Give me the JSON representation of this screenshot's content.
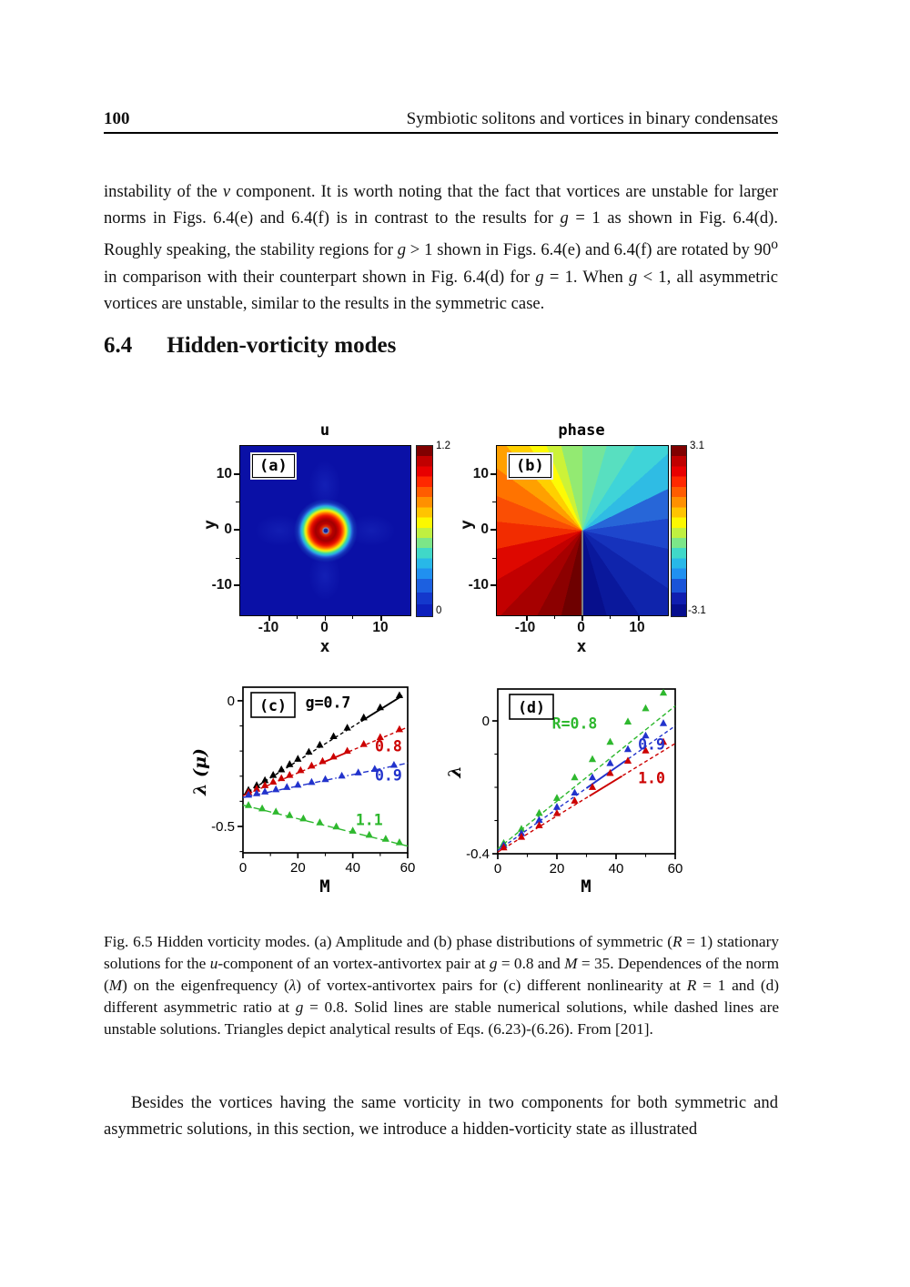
{
  "page": {
    "number": "100",
    "running_title": "Symbiotic solitons and vortices in binary condensates"
  },
  "section": {
    "number": "6.4",
    "title": "Hidden-vorticity modes"
  },
  "paragraphs": {
    "p1": "instability of the *v* component. It is worth noting that the fact that vortices are unstable for larger norms in Figs. 6.4(e) and 6.4(f) is in contrast to the results for *g* = 1 as shown in Fig. 6.4(d). Roughly speaking, the stability regions for *g* > 1 shown in Figs. 6.4(e) and 6.4(f) are rotated by 90^o in comparison with their counterpart shown in Fig. 6.4(d) for *g* = 1. When *g* < 1, all asymmetric vortices are unstable, similar to the results in the symmetric case.",
    "p2": "Besides the vortices having the same vorticity in two components for both symmetric and asymmetric solutions, in this section, we introduce a hidden-vorticity state as illustrated"
  },
  "figure_caption": "Fig. 6.5 Hidden vorticity modes. (a) Amplitude and (b) phase distributions of symmetric (*R* = 1) stationary solutions for the *u*-component of an vortex-antivortex pair at *g* = 0.8 and *M* = 35. Dependences of the norm (*M*) on the eigenfrequency (*λ*) of vortex-antivortex pairs for (c) different nonlinearity at *R* = 1 and (d) different asymmetric ratio at *g* = 0.8. Solid lines are stable numerical solutions, while dashed lines are unstable solutions. Triangles depict analytical results of Eqs. (6.23)-(6.26). From [201].",
  "chart_data": [
    {
      "id": "a",
      "type": "heatmap",
      "title": "u",
      "panel_label": "(a)",
      "xlabel": "x",
      "ylabel": "y",
      "xlim": [
        -15,
        15
      ],
      "ylim": [
        -15,
        15
      ],
      "xtick_labels": [
        "-10",
        "0",
        "10"
      ],
      "ytick_labels": [
        "10",
        "0",
        "-10"
      ],
      "colorbar": {
        "top_label": "1.2",
        "bottom_label": "0",
        "colormap": "jet"
      },
      "description": "Amplitude of the u-component: bright red vortex ring centered at origin with a small dark-blue core, on a dark-blue background with a faint cross-shaped halo."
    },
    {
      "id": "b",
      "type": "heatmap",
      "title": "phase",
      "panel_label": "(b)",
      "xlabel": "x",
      "ylabel": "y",
      "xlim": [
        -15,
        15
      ],
      "ylim": [
        -15,
        15
      ],
      "xtick_labels": [
        "-10",
        "0",
        "10"
      ],
      "ytick_labels": [
        "10",
        "0",
        "-10"
      ],
      "colorbar": {
        "top_label": "3.1",
        "bottom_label": "-3.1",
        "colormap": "jet"
      },
      "description": "Azimuthal phase distribution winding from -3.1 to 3.1 around the origin with a branch cut along the negative y-axis."
    },
    {
      "id": "c",
      "type": "line",
      "panel_label": "(c)",
      "xlabel": "M",
      "ylabel": "λ (μ)",
      "xlim": [
        0,
        60
      ],
      "ylim": [
        -0.605,
        0.054
      ],
      "xticks": [
        {
          "v": 0,
          "label": "0"
        },
        {
          "v": 20,
          "label": "20"
        },
        {
          "v": 40,
          "label": "40"
        },
        {
          "v": 60,
          "label": "60"
        }
      ],
      "xminor": [
        10,
        30,
        50
      ],
      "yticks": [
        {
          "v": 0,
          "label": "0"
        },
        {
          "v": -0.5,
          "label": "-0.5"
        }
      ],
      "yminor": [
        -0.1,
        -0.2,
        -0.3,
        -0.4,
        -0.6
      ],
      "series": [
        {
          "name": "g=0.7",
          "color": "#000000",
          "dash": [
            4,
            3
          ],
          "line": [
            [
              0,
              -0.375
            ],
            [
              58,
              0.02
            ]
          ],
          "solid": [
            43,
            58
          ],
          "tri": [
            [
              2,
              -0.355
            ],
            [
              5,
              -0.336
            ],
            [
              8,
              -0.316
            ],
            [
              11,
              -0.295
            ],
            [
              14,
              -0.273
            ],
            [
              17,
              -0.252
            ],
            [
              20,
              -0.231
            ],
            [
              24,
              -0.203
            ],
            [
              28,
              -0.175
            ],
            [
              33,
              -0.141
            ],
            [
              38,
              -0.107
            ],
            [
              44,
              -0.066
            ],
            [
              50,
              -0.026
            ],
            [
              57,
              0.022
            ]
          ]
        },
        {
          "name": "g=0.8",
          "color": "#cc0000",
          "dash": [
            4,
            3
          ],
          "line": [
            [
              0,
              -0.378
            ],
            [
              60,
              -0.105
            ]
          ],
          "solid": [
            28,
            39
          ],
          "tri": [
            [
              2,
              -0.363
            ],
            [
              5,
              -0.35
            ],
            [
              8,
              -0.336
            ],
            [
              11,
              -0.322
            ],
            [
              14,
              -0.308
            ],
            [
              17,
              -0.295
            ],
            [
              21,
              -0.276
            ],
            [
              25,
              -0.258
            ],
            [
              29,
              -0.24
            ],
            [
              33,
              -0.222
            ],
            [
              38,
              -0.199
            ],
            [
              44,
              -0.172
            ],
            [
              50,
              -0.145
            ],
            [
              57,
              -0.113
            ]
          ]
        },
        {
          "name": "g=0.9",
          "color": "#2233cc",
          "dash": [
            6,
            3,
            1.5,
            3
          ],
          "line": [
            [
              0,
              -0.385
            ],
            [
              60,
              -0.248
            ]
          ],
          "solid": null,
          "tri": [
            [
              2,
              -0.374
            ],
            [
              5,
              -0.368
            ],
            [
              8,
              -0.361
            ],
            [
              12,
              -0.352
            ],
            [
              16,
              -0.343
            ],
            [
              20,
              -0.334
            ],
            [
              25,
              -0.323
            ],
            [
              30,
              -0.312
            ],
            [
              36,
              -0.298
            ],
            [
              42,
              -0.285
            ],
            [
              48,
              -0.271
            ],
            [
              55,
              -0.255
            ]
          ]
        },
        {
          "name": "g=1.1",
          "color": "#2eb82e",
          "dash": [
            8,
            4
          ],
          "line": [
            [
              0,
              -0.415
            ],
            [
              60,
              -0.578
            ]
          ],
          "solid": null,
          "tri": [
            [
              2,
              -0.415
            ],
            [
              7,
              -0.428
            ],
            [
              12,
              -0.441
            ],
            [
              17,
              -0.455
            ],
            [
              22,
              -0.468
            ],
            [
              28,
              -0.484
            ],
            [
              34,
              -0.5
            ],
            [
              40,
              -0.517
            ],
            [
              46,
              -0.533
            ],
            [
              52,
              -0.549
            ],
            [
              57,
              -0.563
            ]
          ]
        }
      ],
      "labels": [
        {
          "text": "g=0.7",
          "color": "#000000",
          "x": 31,
          "y": -0.007
        },
        {
          "text": "0.8",
          "color": "#cc0000",
          "x": 53,
          "y": -0.181
        },
        {
          "text": "0.9",
          "color": "#2233cc",
          "x": 53,
          "y": -0.297
        },
        {
          "text": "1.1",
          "color": "#2eb82e",
          "x": 46,
          "y": -0.474
        }
      ]
    },
    {
      "id": "d",
      "type": "line",
      "panel_label": "(d)",
      "xlabel": "M",
      "ylabel": "λ",
      "xlim": [
        0,
        60
      ],
      "ylim": [
        -0.4,
        0.096
      ],
      "xticks": [
        {
          "v": 0,
          "label": "0"
        },
        {
          "v": 20,
          "label": "20"
        },
        {
          "v": 40,
          "label": "40"
        },
        {
          "v": 60,
          "label": "60"
        }
      ],
      "xminor": [
        10,
        30,
        50
      ],
      "yticks": [
        {
          "v": 0,
          "label": "0"
        },
        {
          "v": -0.4,
          "label": "-0.4"
        }
      ],
      "yminor": [
        -0.1,
        -0.2,
        -0.3
      ],
      "series": [
        {
          "name": "R=0.8",
          "color": "#2eb82e",
          "dash": [
            5,
            3
          ],
          "line": [
            [
              0,
              -0.385
            ],
            [
              60,
              0.045
            ]
          ],
          "solid": null,
          "tri": [
            [
              2,
              -0.368
            ],
            [
              8,
              -0.325
            ],
            [
              14,
              -0.277
            ],
            [
              20,
              -0.232
            ],
            [
              26,
              -0.17
            ],
            [
              32,
              -0.115
            ],
            [
              38,
              -0.063
            ],
            [
              44,
              -0.002
            ],
            [
              50,
              0.038
            ],
            [
              56,
              0.085
            ]
          ]
        },
        {
          "name": "R=0.9",
          "color": "#2233cc",
          "dash": [
            4,
            3
          ],
          "line": [
            [
              0,
              -0.39
            ],
            [
              60,
              -0.015
            ]
          ],
          "solid": [
            30,
            43
          ],
          "tri": [
            [
              2,
              -0.374
            ],
            [
              8,
              -0.338
            ],
            [
              14,
              -0.298
            ],
            [
              20,
              -0.259
            ],
            [
              26,
              -0.216
            ],
            [
              32,
              -0.17
            ],
            [
              38,
              -0.127
            ],
            [
              44,
              -0.085
            ],
            [
              50,
              -0.044
            ],
            [
              56,
              -0.007
            ]
          ]
        },
        {
          "name": "R=1.0",
          "color": "#cc0000",
          "dash": [
            4,
            3
          ],
          "line": [
            [
              0,
              -0.395
            ],
            [
              60,
              -0.068
            ]
          ],
          "solid": [
            31,
            42
          ],
          "tri": [
            [
              2,
              -0.381
            ],
            [
              8,
              -0.349
            ],
            [
              14,
              -0.314
            ],
            [
              20,
              -0.278
            ],
            [
              26,
              -0.24
            ],
            [
              32,
              -0.199
            ],
            [
              38,
              -0.157
            ],
            [
              44,
              -0.12
            ],
            [
              50,
              -0.089
            ],
            [
              56,
              -0.063
            ]
          ]
        }
      ],
      "labels": [
        {
          "text": "R=0.8",
          "color": "#2eb82e",
          "x": 26,
          "y": -0.008
        },
        {
          "text": "0.9",
          "color": "#2233cc",
          "x": 52,
          "y": -0.071
        },
        {
          "text": "1.0",
          "color": "#cc0000",
          "x": 52,
          "y": -0.173
        }
      ]
    }
  ]
}
